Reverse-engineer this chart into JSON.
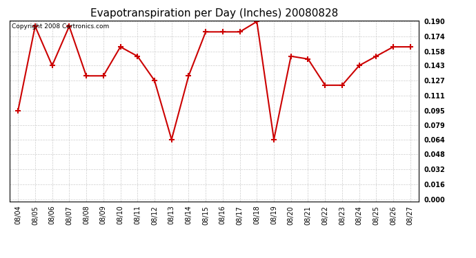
{
  "title": "Evapotranspiration per Day (Inches) 20080828",
  "copyright": "Copyright 2008 Cartronics.com",
  "dates": [
    "08/04",
    "08/05",
    "08/06",
    "08/07",
    "08/08",
    "08/09",
    "08/10",
    "08/11",
    "08/12",
    "08/13",
    "08/14",
    "08/15",
    "08/16",
    "08/17",
    "08/18",
    "08/19",
    "08/20",
    "08/21",
    "08/22",
    "08/23",
    "08/24",
    "08/25",
    "08/26",
    "08/27"
  ],
  "values": [
    0.095,
    0.185,
    0.143,
    0.185,
    0.132,
    0.132,
    0.163,
    0.153,
    0.127,
    0.064,
    0.132,
    0.179,
    0.179,
    0.179,
    0.19,
    0.064,
    0.153,
    0.15,
    0.122,
    0.122,
    0.143,
    0.153,
    0.163,
    0.163
  ],
  "line_color": "#cc0000",
  "marker": "+",
  "marker_size": 6,
  "marker_linewidth": 1.5,
  "line_width": 1.5,
  "background_color": "#ffffff",
  "plot_bg_color": "#ffffff",
  "grid_color": "#cccccc",
  "ylim": [
    0.0,
    0.19
  ],
  "yticks": [
    0.0,
    0.016,
    0.032,
    0.048,
    0.064,
    0.079,
    0.095,
    0.111,
    0.127,
    0.143,
    0.158,
    0.174,
    0.19
  ],
  "title_fontsize": 11,
  "tick_fontsize": 7,
  "xtick_fontsize": 7,
  "copyright_fontsize": 6.5
}
